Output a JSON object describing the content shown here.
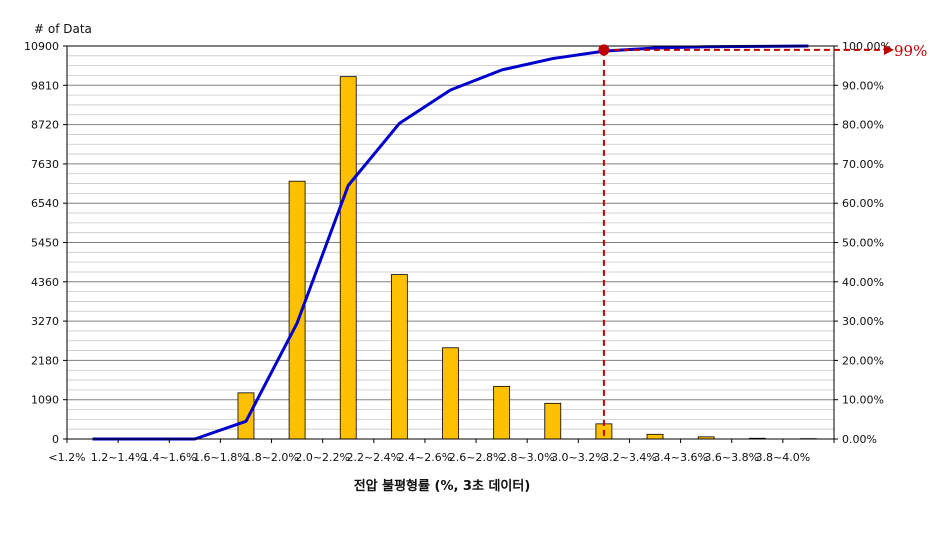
{
  "chart_data": {
    "type": "bar",
    "ylabel": "# of Data",
    "xlabel": "전압 불평형률 (%, 3초 데이터)",
    "categories": [
      "<1.2%",
      "1.2~1.4%",
      "1.4~1.6%",
      "1.6~1.8%",
      "1.8~2.0%",
      "2.0~2.2%",
      "2.2~2.4%",
      "2.4~2.6%",
      "2.6~2.8%",
      "2.8~3.0%",
      "3.0~3.2%",
      "3.2~3.4%",
      "3.4~3.6%",
      "3.6~3.8%",
      "3.8~4.0%"
    ],
    "series": [
      {
        "type": "bar",
        "axis": "left",
        "values": [
          0,
          0,
          0,
          1280,
          7150,
          10050,
          4560,
          2530,
          1460,
          990,
          420,
          130,
          60,
          20,
          10
        ]
      },
      {
        "type": "line",
        "axis": "right",
        "values": [
          0,
          0,
          0,
          4.5,
          29.5,
          64.5,
          80.3,
          88.8,
          93.9,
          96.8,
          98.7,
          99.5,
          99.8,
          99.9,
          100
        ]
      }
    ],
    "y_left_ticks": [
      "0",
      "1090",
      "2180",
      "3270",
      "4360",
      "5450",
      "6540",
      "7630",
      "8720",
      "9810",
      "10900"
    ],
    "y_left_range": [
      0,
      10900
    ],
    "y_right_ticks": [
      "0.00%",
      "10.00%",
      "20.00%",
      "30.00%",
      "40.00%",
      "50.00%",
      "60.00%",
      "70.00%",
      "80.00%",
      "90.00%",
      "100.00%"
    ],
    "y_right_range": [
      0,
      100
    ],
    "grid": "horizontal",
    "annotation": {
      "text": "99%",
      "category": "3.0~3.2%",
      "value": 99
    },
    "colors": {
      "bars": "#ffc000",
      "bar_border": "#000000",
      "line": "#0000cc",
      "annotation": "#c00000"
    }
  }
}
